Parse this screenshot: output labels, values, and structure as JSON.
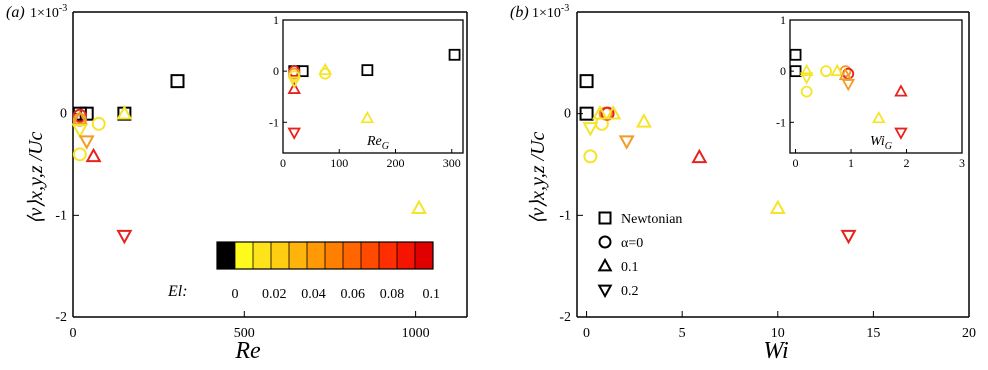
{
  "colors": {
    "black": "#000000",
    "yellow": "#f5e52a",
    "orange": "#f39b25",
    "red": "#e8231d",
    "axis": "#000000"
  },
  "chart_data": [
    {
      "id": "a",
      "type": "scatter",
      "panel_label": "(a)",
      "ylabel": "⟨v⟩x,y,z /Uc",
      "xlabel": "Re",
      "y_multiplier": "1×10",
      "y_multiplier_exp": "-3",
      "xlim": [
        0,
        1150
      ],
      "ylim": [
        -2,
        1
      ],
      "xticks": [
        0,
        500,
        1000
      ],
      "yticks": [
        -2,
        -1,
        0
      ],
      "series": [
        {
          "marker": "square",
          "points": [
            {
              "x": 20,
              "y": 0.0,
              "color": "black"
            },
            {
              "x": 40,
              "y": 0.0,
              "color": "black"
            },
            {
              "x": 150,
              "y": 0.0,
              "color": "black"
            },
            {
              "x": 305,
              "y": 0.32,
              "color": "black"
            }
          ]
        },
        {
          "marker": "circle",
          "points": [
            {
              "x": 20,
              "y": -0.02,
              "color": "red"
            },
            {
              "x": 20,
              "y": -0.06,
              "color": "orange"
            },
            {
              "x": 20,
              "y": -0.4,
              "color": "yellow"
            },
            {
              "x": 75,
              "y": -0.1,
              "color": "yellow"
            }
          ]
        },
        {
          "marker": "triangle-up",
          "points": [
            {
              "x": 20,
              "y": -0.05,
              "color": "orange"
            },
            {
              "x": 60,
              "y": -0.42,
              "color": "red"
            },
            {
              "x": 150,
              "y": 0.0,
              "color": "yellow"
            },
            {
              "x": 1010,
              "y": -0.93,
              "color": "yellow"
            }
          ]
        },
        {
          "marker": "triangle-down",
          "points": [
            {
              "x": 20,
              "y": -0.16,
              "color": "yellow"
            },
            {
              "x": 40,
              "y": -0.27,
              "color": "orange"
            },
            {
              "x": 150,
              "y": -1.2,
              "color": "red"
            }
          ]
        }
      ],
      "inset": {
        "xlabel": "ReG",
        "xlim": [
          0,
          320
        ],
        "ylim": [
          -1.6,
          1
        ],
        "xticks": [
          0,
          100,
          200,
          300
        ],
        "yticks": [
          -1,
          0,
          1
        ],
        "series": [
          {
            "marker": "square",
            "points": [
              {
                "x": 20,
                "y": 0.0,
                "color": "black"
              },
              {
                "x": 35,
                "y": 0.0,
                "color": "black"
              },
              {
                "x": 150,
                "y": 0.02,
                "color": "black"
              },
              {
                "x": 305,
                "y": 0.32,
                "color": "black"
              }
            ]
          },
          {
            "marker": "circle",
            "points": [
              {
                "x": 20,
                "y": 0.0,
                "color": "red"
              },
              {
                "x": 20,
                "y": -0.05,
                "color": "orange"
              },
              {
                "x": 20,
                "y": -0.1,
                "color": "yellow"
              },
              {
                "x": 75,
                "y": -0.05,
                "color": "yellow"
              }
            ]
          },
          {
            "marker": "triangle-up",
            "points": [
              {
                "x": 20,
                "y": -0.35,
                "color": "red"
              },
              {
                "x": 75,
                "y": 0.02,
                "color": "yellow"
              },
              {
                "x": 150,
                "y": -0.92,
                "color": "yellow"
              }
            ]
          },
          {
            "marker": "triangle-down",
            "points": [
              {
                "x": 20,
                "y": -1.2,
                "color": "red"
              },
              {
                "x": 20,
                "y": -0.2,
                "color": "yellow"
              }
            ]
          }
        ]
      }
    },
    {
      "id": "b",
      "type": "scatter",
      "panel_label": "(b)",
      "ylabel": "⟨v⟩x,y,z /Uc",
      "xlabel": "Wi",
      "y_multiplier": "1×10",
      "y_multiplier_exp": "-3",
      "xlim": [
        -0.5,
        20
      ],
      "ylim": [
        -2,
        1
      ],
      "xticks": [
        0,
        5,
        10,
        15,
        20
      ],
      "yticks": [
        -2,
        -1,
        0
      ],
      "series": [
        {
          "marker": "square",
          "points": [
            {
              "x": 0.0,
              "y": 0.0,
              "color": "black"
            },
            {
              "x": 0.0,
              "y": 0.32,
              "color": "black"
            }
          ]
        },
        {
          "marker": "circle",
          "points": [
            {
              "x": 0.2,
              "y": -0.42,
              "color": "yellow"
            },
            {
              "x": 0.8,
              "y": -0.1,
              "color": "yellow"
            },
            {
              "x": 1.0,
              "y": 0.0,
              "color": "orange"
            },
            {
              "x": 1.1,
              "y": 0.0,
              "color": "red"
            }
          ]
        },
        {
          "marker": "triangle-up",
          "points": [
            {
              "x": 0.7,
              "y": 0.0,
              "color": "yellow"
            },
            {
              "x": 1.4,
              "y": 0.0,
              "color": "yellow"
            },
            {
              "x": 3.0,
              "y": -0.08,
              "color": "yellow"
            },
            {
              "x": 5.9,
              "y": -0.43,
              "color": "red"
            },
            {
              "x": 10.0,
              "y": -0.93,
              "color": "yellow"
            }
          ]
        },
        {
          "marker": "triangle-down",
          "points": [
            {
              "x": 0.2,
              "y": -0.14,
              "color": "yellow"
            },
            {
              "x": 2.1,
              "y": -0.27,
              "color": "orange"
            },
            {
              "x": 13.7,
              "y": -1.2,
              "color": "red"
            }
          ]
        }
      ],
      "inset": {
        "xlabel": "WiG",
        "xlim": [
          -0.1,
          3
        ],
        "ylim": [
          -1.6,
          1
        ],
        "xticks": [
          0,
          1,
          2,
          3
        ],
        "yticks": [
          -1,
          0,
          1
        ],
        "series": [
          {
            "marker": "square",
            "points": [
              {
                "x": 0.0,
                "y": 0.32,
                "color": "black"
              },
              {
                "x": 0.0,
                "y": 0.0,
                "color": "black"
              }
            ]
          },
          {
            "marker": "circle",
            "points": [
              {
                "x": 0.2,
                "y": -0.4,
                "color": "yellow"
              },
              {
                "x": 0.55,
                "y": 0.0,
                "color": "yellow"
              },
              {
                "x": 0.9,
                "y": 0.0,
                "color": "orange"
              },
              {
                "x": 0.95,
                "y": -0.05,
                "color": "red"
              }
            ]
          },
          {
            "marker": "triangle-up",
            "points": [
              {
                "x": 0.2,
                "y": 0.0,
                "color": "yellow"
              },
              {
                "x": 0.75,
                "y": 0.0,
                "color": "yellow"
              },
              {
                "x": 0.9,
                "y": -0.08,
                "color": "orange"
              },
              {
                "x": 1.5,
                "y": -0.92,
                "color": "yellow"
              },
              {
                "x": 1.9,
                "y": -0.4,
                "color": "red"
              }
            ]
          },
          {
            "marker": "triangle-down",
            "points": [
              {
                "x": 0.2,
                "y": -0.12,
                "color": "yellow"
              },
              {
                "x": 0.95,
                "y": -0.25,
                "color": "orange"
              },
              {
                "x": 1.9,
                "y": -1.2,
                "color": "red"
              }
            ]
          }
        ]
      }
    }
  ],
  "colorbar": {
    "title": "El:",
    "ticks": [
      "0",
      "0.02",
      "0.04",
      "0.06",
      "0.08",
      "0.1"
    ],
    "colors": [
      "#000000",
      "#fffa1e",
      "#ffe31a",
      "#ffcd12",
      "#ffb40c",
      "#ff9a06",
      "#ff8000",
      "#ff6600",
      "#ff4a00",
      "#ff2e00",
      "#f51400",
      "#e00000"
    ]
  },
  "legend": {
    "items": [
      {
        "marker": "square",
        "label": "Newtonian"
      },
      {
        "marker": "circle",
        "label": "α=0"
      },
      {
        "marker": "triangle-up",
        "label": "0.1"
      },
      {
        "marker": "triangle-down",
        "label": "0.2"
      }
    ]
  }
}
